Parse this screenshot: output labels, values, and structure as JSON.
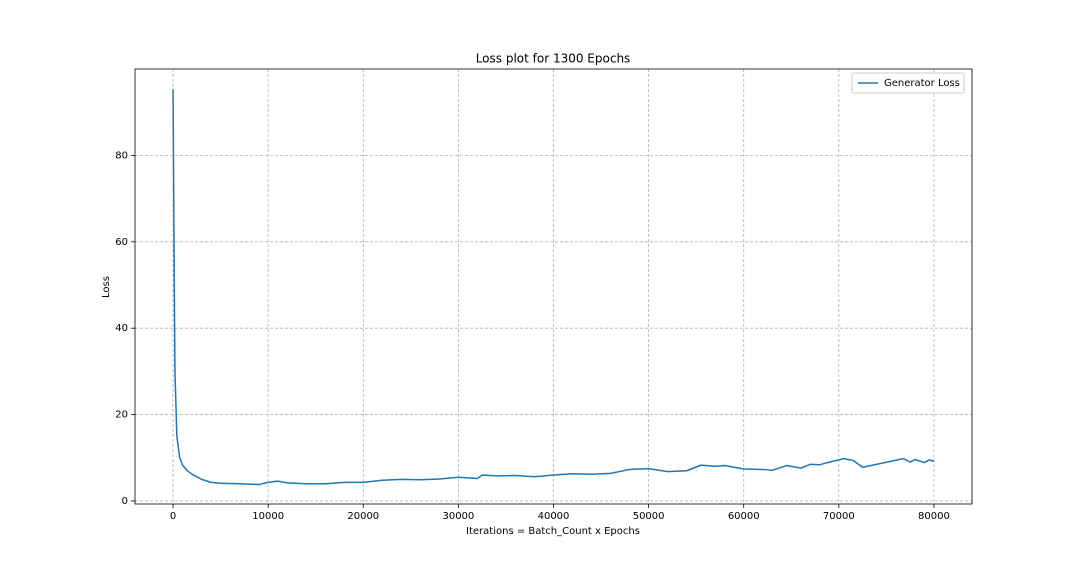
{
  "chart_data": {
    "type": "line",
    "title": "Loss plot for 1300 Epochs",
    "x_label": "Iterations = Batch_Count x Epochs",
    "y_label": "Loss",
    "x": [
      0,
      100,
      200,
      400,
      700,
      1000,
      1500,
      2000,
      3000,
      4000,
      5000,
      7000,
      9000,
      10000,
      11000,
      12000,
      14000,
      16000,
      18000,
      20000,
      22000,
      24000,
      26000,
      28000,
      30000,
      32000,
      32500,
      34000,
      36000,
      38000,
      40000,
      42000,
      44000,
      46000,
      48000,
      50000,
      52000,
      54000,
      55500,
      57000,
      58000,
      60000,
      62000,
      63000,
      64500,
      66000,
      67000,
      68000,
      69000,
      70500,
      71500,
      72500,
      74000,
      75500,
      76800,
      77500,
      78000,
      79000,
      79500,
      80000
    ],
    "series": [
      {
        "name": "Generator Loss",
        "color": "#1f77b4",
        "values": [
          95.3,
          60,
          30,
          15,
          10,
          8.3,
          7,
          6.2,
          5,
          4.3,
          4.1,
          4.0,
          3.8,
          4.3,
          4.6,
          4.2,
          4.0,
          4.0,
          4.3,
          4.3,
          4.8,
          5.0,
          4.9,
          5.1,
          5.5,
          5.2,
          6.0,
          5.8,
          5.9,
          5.6,
          6.0,
          6.3,
          6.2,
          6.4,
          7.3,
          7.5,
          6.8,
          7.0,
          8.3,
          8.0,
          8.2,
          7.4,
          7.3,
          7.1,
          8.2,
          7.6,
          8.5,
          8.4,
          9.0,
          9.8,
          9.4,
          7.8,
          8.5,
          9.2,
          9.8,
          9.0,
          9.6,
          8.9,
          9.5,
          9.2
        ]
      }
    ],
    "xlim": [
      -4000,
      84000
    ],
    "ylim": [
      -0.7,
      100
    ],
    "xticks": [
      0,
      10000,
      20000,
      30000,
      40000,
      50000,
      60000,
      70000,
      80000
    ],
    "yticks": [
      0,
      20,
      40,
      60,
      80
    ],
    "grid": true,
    "legend": "upper right"
  }
}
